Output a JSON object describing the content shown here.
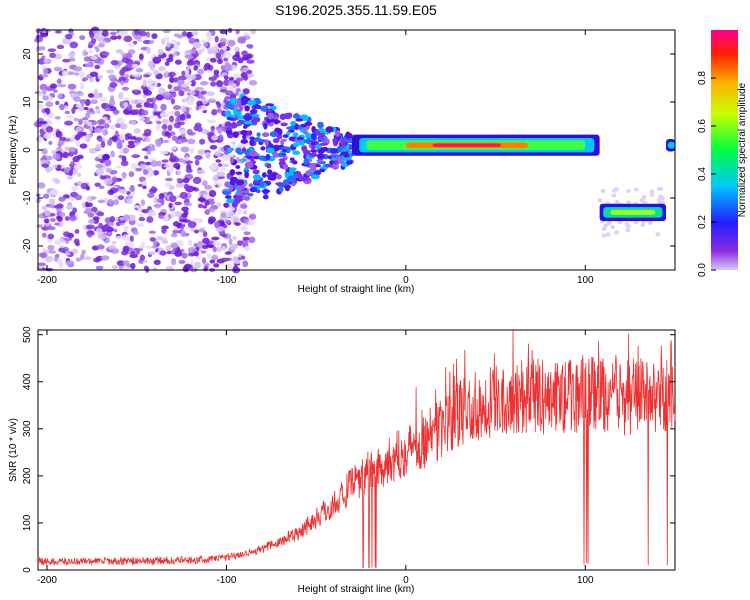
{
  "chart_data": [
    {
      "type": "heatmap",
      "title": "S196.2025.355.11.59.E05",
      "xlabel": "Height of straight line (km)",
      "ylabel": "Frequency (Hz)",
      "xlim": [
        -205,
        150
      ],
      "ylim": [
        -25,
        25
      ],
      "xticks": [
        -200,
        -100,
        0,
        100
      ],
      "xtick_labels": [
        "-200",
        "-100",
        "0",
        "100"
      ],
      "yticks": [
        -20,
        -10,
        0,
        10,
        20
      ],
      "ytick_labels": [
        "-20",
        "-10",
        "0",
        "10",
        "20"
      ],
      "colorbar": {
        "label": "Normalized spectral amplitude",
        "range": [
          0,
          1
        ],
        "ticks": [
          0,
          0.2,
          0.4,
          0.6,
          0.8
        ],
        "tick_labels": [
          "0.0",
          "0.2",
          "0.4",
          "0.6",
          "0.8"
        ],
        "colormap": "rainbow (purple-blue-cyan-green-yellow-red-magenta)"
      },
      "features": [
        {
          "name": "scattered noise",
          "x_range": [
            -205,
            -100
          ],
          "freq_range": [
            -25,
            25
          ],
          "amplitude": 0.1
        },
        {
          "name": "diffuse band",
          "x_range": [
            -100,
            -30
          ],
          "freq_center": 0,
          "amplitude": 0.2
        },
        {
          "name": "main tone",
          "x_range": [
            -30,
            108
          ],
          "freq_center": 1,
          "amplitude": 0.9
        },
        {
          "name": "shifted tone",
          "x_range": [
            108,
            145
          ],
          "freq_center": -13,
          "amplitude": 0.5
        },
        {
          "name": "edge tone",
          "x_range": [
            145,
            150
          ],
          "freq_center": 1,
          "amplitude": 0.4
        }
      ]
    },
    {
      "type": "line",
      "xlabel": "Height of straight line (km)",
      "ylabel": "SNR (10 * v/v)",
      "xlim": [
        -205,
        150
      ],
      "ylim": [
        0,
        510
      ],
      "xticks": [
        -200,
        -100,
        0,
        100
      ],
      "xtick_labels": [
        "-200",
        "-100",
        "0",
        "100"
      ],
      "yticks": [
        0,
        100,
        200,
        300,
        400,
        500
      ],
      "ytick_labels": [
        "0",
        "100",
        "200",
        "300",
        "400",
        "500"
      ],
      "color": "#ee3030",
      "series": [
        {
          "name": "SNR",
          "x": [
            -205,
            -190,
            -170,
            -150,
            -130,
            -110,
            -100,
            -90,
            -80,
            -70,
            -60,
            -50,
            -40,
            -30,
            -20,
            -10,
            0,
            10,
            20,
            30,
            40,
            50,
            60,
            70,
            80,
            90,
            100,
            110,
            120,
            130,
            140,
            150
          ],
          "y": [
            18,
            18,
            19,
            19,
            20,
            22,
            28,
            35,
            45,
            60,
            80,
            110,
            140,
            180,
            210,
            230,
            255,
            275,
            300,
            330,
            350,
            360,
            370,
            370,
            365,
            370,
            375,
            370,
            365,
            370,
            365,
            375
          ]
        }
      ]
    }
  ]
}
